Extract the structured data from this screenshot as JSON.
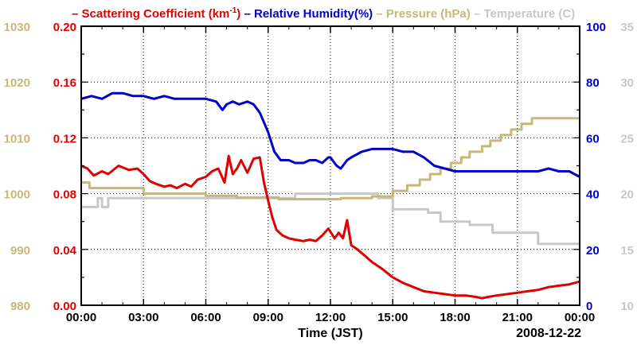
{
  "chart_data": {
    "type": "line",
    "title": "",
    "xlabel": "Time (JST)",
    "date_label": "2008-12-22",
    "x_tick_labels": [
      "00:00",
      "03:00",
      "06:00",
      "09:00",
      "12:00",
      "15:00",
      "18:00",
      "21:00",
      "00:00"
    ],
    "xlim": [
      0,
      24
    ],
    "axes": {
      "scattering": {
        "label": "Scattering Coefficient (km",
        "sup": "-1",
        "label_end": ")",
        "ylim": [
          0,
          0.2
        ],
        "ticks": [
          "0.00",
          "0.04",
          "0.08",
          "0.12",
          "0.16",
          "0.20"
        ],
        "color": "#e00000"
      },
      "humidity": {
        "label": "Relative Humidity(%)",
        "ylim": [
          0,
          100
        ],
        "ticks": [
          "0",
          "20",
          "40",
          "60",
          "80",
          "100"
        ],
        "color": "#0000cc"
      },
      "pressure": {
        "label": "Pressure (hPa)",
        "ylim": [
          980,
          1030
        ],
        "ticks": [
          "980",
          "990",
          "1000",
          "1010",
          "1020",
          "1030"
        ],
        "color": "#c8b878"
      },
      "temperature": {
        "label": "Temperature (C)",
        "ylim": [
          10,
          35
        ],
        "ticks": [
          "10",
          "15",
          "20",
          "25",
          "30",
          "35"
        ],
        "color": "#c8c8c8"
      }
    },
    "series": [
      {
        "name": "Scattering Coefficient",
        "axis": "scattering",
        "x": [
          0,
          0.3,
          0.6,
          1.0,
          1.3,
          1.8,
          2.3,
          2.7,
          3.0,
          3.3,
          3.6,
          4.0,
          4.3,
          4.6,
          5.0,
          5.3,
          5.6,
          6.0,
          6.3,
          6.6,
          6.9,
          7.1,
          7.3,
          7.5,
          7.7,
          8.0,
          8.3,
          8.6,
          8.8,
          9.0,
          9.2,
          9.4,
          9.7,
          10.0,
          10.3,
          10.7,
          11.0,
          11.3,
          11.6,
          11.9,
          12.2,
          12.4,
          12.6,
          12.8,
          13.0,
          13.3,
          13.7,
          14.0,
          14.5,
          15.0,
          15.5,
          16.0,
          16.5,
          17.0,
          17.5,
          18.0,
          18.5,
          19.0,
          19.3,
          19.6,
          20.0,
          20.5,
          21.0,
          21.5,
          22.0,
          22.5,
          23.0,
          23.5,
          24.0
        ],
        "values": [
          0.1,
          0.098,
          0.093,
          0.096,
          0.094,
          0.1,
          0.097,
          0.098,
          0.094,
          0.089,
          0.087,
          0.085,
          0.086,
          0.084,
          0.087,
          0.085,
          0.09,
          0.092,
          0.096,
          0.098,
          0.088,
          0.107,
          0.094,
          0.098,
          0.104,
          0.095,
          0.105,
          0.106,
          0.088,
          0.075,
          0.063,
          0.054,
          0.05,
          0.048,
          0.047,
          0.046,
          0.047,
          0.046,
          0.05,
          0.055,
          0.048,
          0.052,
          0.048,
          0.061,
          0.043,
          0.04,
          0.035,
          0.031,
          0.026,
          0.02,
          0.016,
          0.013,
          0.01,
          0.009,
          0.008,
          0.007,
          0.007,
          0.006,
          0.005,
          0.006,
          0.007,
          0.008,
          0.009,
          0.01,
          0.011,
          0.013,
          0.014,
          0.015,
          0.017
        ]
      },
      {
        "name": "Relative Humidity(%)",
        "axis": "humidity",
        "x": [
          0,
          0.5,
          1.0,
          1.5,
          2.0,
          2.5,
          3.0,
          3.5,
          4.0,
          4.5,
          5.0,
          5.5,
          6.0,
          6.5,
          6.8,
          7.0,
          7.3,
          7.6,
          8.0,
          8.3,
          8.6,
          9.0,
          9.3,
          9.6,
          10.0,
          10.3,
          10.7,
          11.0,
          11.3,
          11.6,
          11.9,
          12.0,
          12.3,
          12.5,
          12.8,
          13.0,
          13.5,
          14.0,
          14.5,
          15.0,
          15.5,
          16.0,
          16.5,
          17.0,
          17.5,
          18.0,
          19.0,
          20.0,
          21.0,
          22.0,
          22.5,
          23.0,
          23.5,
          24.0
        ],
        "values": [
          74,
          75,
          74,
          76,
          76,
          75,
          75,
          74,
          75,
          74,
          74,
          74,
          74,
          73,
          70,
          72,
          73,
          72,
          73,
          72,
          69,
          62,
          55,
          52,
          52,
          51,
          51,
          52,
          52,
          51,
          53,
          53,
          50,
          49,
          52,
          53,
          55,
          56,
          56,
          56,
          55,
          55,
          53,
          50,
          49,
          48,
          48,
          48,
          48,
          48,
          49,
          48,
          48,
          46
        ]
      },
      {
        "name": "Pressure (hPa)",
        "axis": "pressure",
        "x": [
          0,
          0.4,
          0.4,
          3.0,
          3.0,
          6.0,
          6.0,
          7.5,
          7.5,
          9.5,
          9.5,
          12.5,
          12.5,
          14.0,
          14.0,
          15.0,
          15.0,
          15.7,
          15.7,
          16.3,
          16.3,
          16.8,
          16.8,
          17.3,
          17.3,
          17.8,
          17.8,
          18.3,
          18.3,
          18.7,
          18.7,
          19.3,
          19.3,
          19.7,
          19.7,
          20.2,
          20.2,
          20.7,
          20.7,
          21.2,
          21.2,
          21.7,
          21.7,
          24.0
        ],
        "values": [
          1002,
          1002,
          1001,
          1001,
          1000,
          1000,
          999.6,
          999.6,
          999.3,
          999.3,
          999,
          999,
          999.2,
          999.2,
          999.5,
          999.5,
          1000.5,
          1000.5,
          1001.5,
          1001.5,
          1002.5,
          1002.5,
          1003.5,
          1003.5,
          1004.5,
          1004.5,
          1005.5,
          1005.5,
          1006.5,
          1006.5,
          1007.5,
          1007.5,
          1008.5,
          1008.5,
          1009.5,
          1009.5,
          1010.5,
          1010.5,
          1011.5,
          1011.5,
          1012.5,
          1012.5,
          1013.5,
          1013.5
        ]
      },
      {
        "name": "Temperature (C)",
        "axis": "temperature",
        "x": [
          0,
          0.8,
          0.8,
          1.0,
          1.0,
          1.3,
          1.3,
          10.3,
          10.3,
          14.3,
          14.3,
          15.0,
          15.0,
          16.7,
          16.7,
          17.3,
          17.3,
          18.7,
          18.7,
          19.8,
          19.8,
          22.0,
          22.0,
          24.0
        ],
        "values": [
          18.8,
          18.8,
          19.6,
          19.6,
          18.8,
          18.8,
          19.6,
          19.6,
          20.0,
          20.0,
          19.6,
          19.6,
          18.6,
          18.6,
          18.3,
          18.3,
          17.5,
          17.5,
          17.2,
          17.2,
          16.5,
          16.5,
          15.5,
          15.5
        ]
      }
    ]
  }
}
